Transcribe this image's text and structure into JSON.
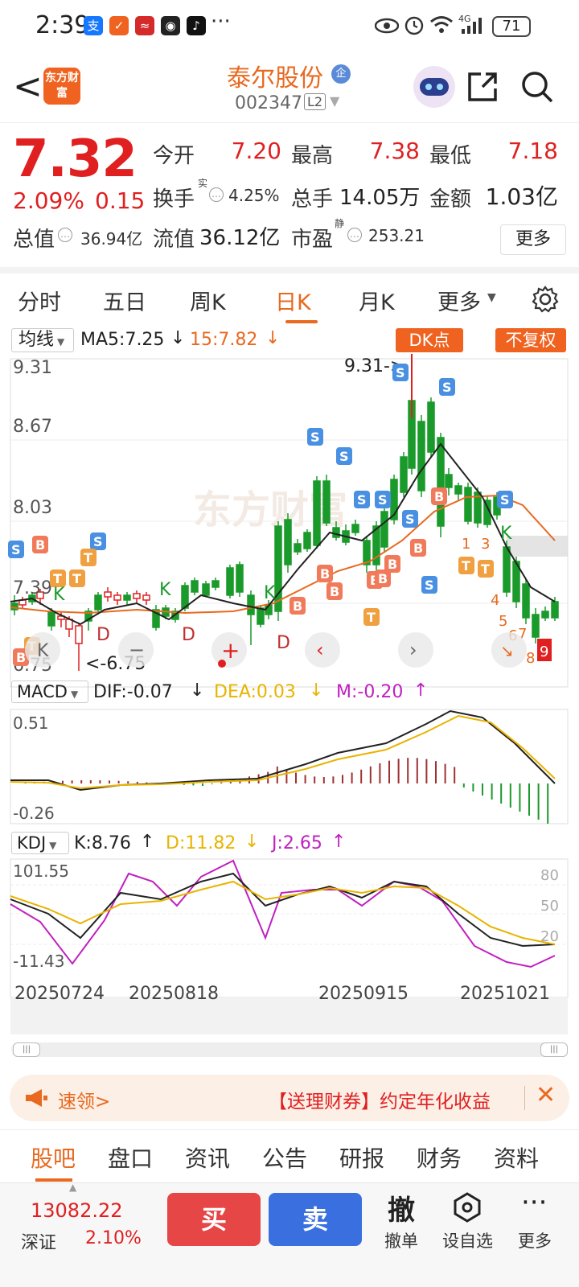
{
  "status_bar": {
    "time": "2:39",
    "battery": "71",
    "network": "4G"
  },
  "header": {
    "logo_text": "东方财富",
    "stock_name": "泰尔股份",
    "badge": "企",
    "stock_code": "002347",
    "level": "L2"
  },
  "quote": {
    "price": "7.32",
    "change_pct": "2.09%",
    "change_amt": "0.15",
    "open_label": "今开",
    "open": "7.20",
    "high_label": "最高",
    "high": "7.38",
    "low_label": "最低",
    "low": "7.18",
    "turnover_label": "换手",
    "turnover_sup": "实",
    "turnover": "4.25%",
    "volume_label": "总手",
    "volume": "14.05万",
    "amount_label": "金额",
    "amount": "1.03亿",
    "mktcap_label": "总值",
    "mktcap": "36.94亿",
    "float_label": "流值",
    "float_cap": "36.12亿",
    "pe_label": "市盈",
    "pe_sup": "静",
    "pe": "253.21",
    "more": "更多"
  },
  "tabs": [
    "分时",
    "五日",
    "周K",
    "日K",
    "月K",
    "更多"
  ],
  "active_tab": "日K",
  "chart_toolbar": {
    "ma_select": "均线",
    "ma5_label": "MA5:7.25",
    "ma15_label": "15:7.82",
    "dk_button": "DK点",
    "adjust_button": "不复权"
  },
  "macd": {
    "select": "MACD",
    "dif": "DIF:-0.07",
    "dea": "DEA:0.03",
    "m": "M:-0.20"
  },
  "kdj": {
    "select": "KDJ",
    "k": "K:8.76",
    "d": "D:11.82",
    "j": "J:2.65"
  },
  "chart_data": [
    {
      "type": "candlestick",
      "title": "",
      "y_ticks": [
        "9.31",
        "8.67",
        "8.03",
        "7.39",
        "6.75"
      ],
      "ylim": [
        6.75,
        9.31
      ],
      "annotations": [
        "9.31->",
        "<-6.75"
      ],
      "last_close": 7.32,
      "series": [
        {
          "name": "MA5",
          "value": 7.25
        },
        {
          "name": "MA15",
          "value": 7.82
        }
      ],
      "signals": [
        "S",
        "B",
        "T",
        "K",
        "D"
      ],
      "x_ticks": [
        "20250724",
        "20250818",
        "20250915",
        "20251021"
      ]
    },
    {
      "type": "bar",
      "title": "MACD",
      "y_ticks": [
        "0.51",
        "-0.26"
      ],
      "ylim": [
        -0.26,
        0.51
      ],
      "series": [
        {
          "name": "DIF",
          "value": -0.07
        },
        {
          "name": "DEA",
          "value": 0.03
        },
        {
          "name": "M",
          "value": -0.2
        }
      ]
    },
    {
      "type": "line",
      "title": "KDJ",
      "y_ticks": [
        "101.55",
        "-11.43"
      ],
      "ylim": [
        -11.43,
        101.55
      ],
      "ref_lines": [
        "80",
        "50",
        "20"
      ],
      "series": [
        {
          "name": "K",
          "value": 8.76
        },
        {
          "name": "D",
          "value": 11.82
        },
        {
          "name": "J",
          "value": 2.65
        }
      ]
    }
  ],
  "banner": {
    "lead": "速领>",
    "message": "【送理财券】约定年化收益"
  },
  "bottom_tabs": [
    "股吧",
    "盘口",
    "资讯",
    "公告",
    "研报",
    "财务",
    "资料"
  ],
  "bottom_bar": {
    "index_value": "13082.22",
    "index_name": "深证",
    "index_pct": "2.10%",
    "buy": "买",
    "sell": "卖",
    "cancel_icon": "撤",
    "cancel": "撤单",
    "watchlist": "设自选",
    "more": "更多"
  },
  "colors": {
    "up": "#e02020",
    "down": "#1a9a2a",
    "accent": "#e8691f",
    "sell_button": "#3a6fe0",
    "buy_button": "#e64646"
  }
}
